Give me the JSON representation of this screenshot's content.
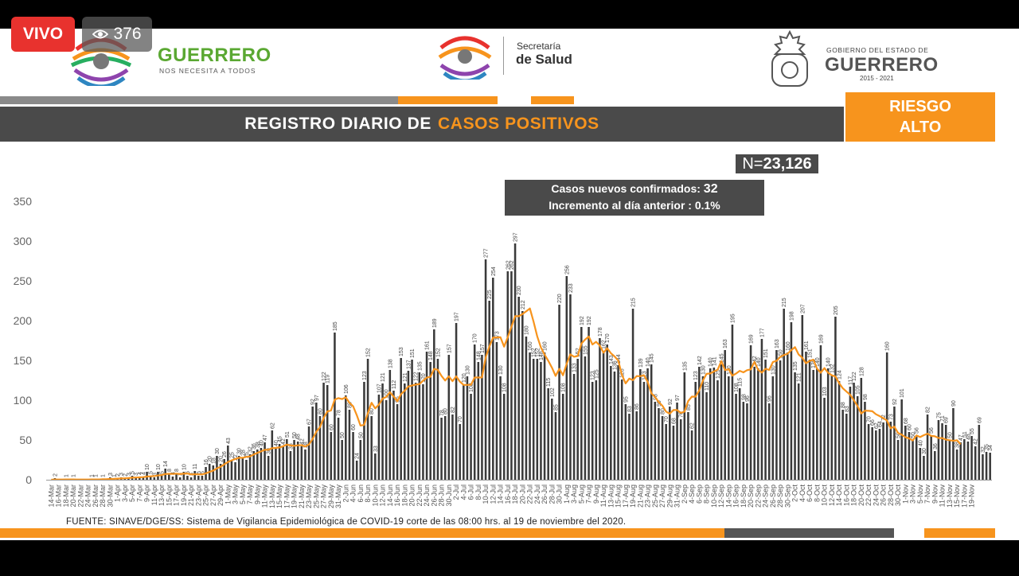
{
  "live": {
    "label": "VIVO",
    "viewers": "376"
  },
  "header": {
    "guerrero": {
      "name": "GUERRERO",
      "tagline": "NOS NECESITA A TODOS"
    },
    "salud": {
      "line1": "Secretaría",
      "line2": "de Salud"
    },
    "gobierno": {
      "line1": "GOBIERNO DEL ESTADO DE",
      "line2": "GUERRERO",
      "years": "2015 - 2021"
    }
  },
  "title": {
    "prefix": "REGISTRO DIARIO DE",
    "highlight": "CASOS POSITIVOS"
  },
  "risk": {
    "line1": "RIESGO",
    "line2": "ALTO"
  },
  "total": {
    "prefix": "N=",
    "value": "23,126"
  },
  "stats": {
    "new_label": "Casos nuevos confirmados:",
    "new_value": "32",
    "inc_label": "Incremento al día anterior :",
    "inc_value": "0.1%"
  },
  "source": "FUENTE: SINAVE/DGE/SS: Sistema de Vigilancia Epidemiológica de COVID-19 corte de las 08:00 hrs. al 19 de noviembre del 2020.",
  "colors": {
    "orange": "#f7941d",
    "dark": "#4a4a4a",
    "bar": "#3a3a3a",
    "red": "#e8322e"
  },
  "chart_data": {
    "type": "bar",
    "ylim": [
      0,
      350
    ],
    "yticks": [
      0,
      50,
      100,
      150,
      200,
      250,
      300,
      350
    ],
    "x_tick_labels": [
      "14-Mar",
      "16-Mar",
      "18-Mar",
      "20-Mar",
      "22-Mar",
      "24-Mar",
      "26-Mar",
      "28-Mar",
      "30-Mar",
      "1-Apr",
      "3-Apr",
      "5-Apr",
      "7-Apr",
      "9-Apr",
      "11-Apr",
      "13-Apr",
      "15-Apr",
      "17-Apr",
      "19-Apr",
      "21-Apr",
      "23-Apr",
      "25-Apr",
      "27-Apr",
      "29-Apr",
      "1-May",
      "3-May",
      "5-May",
      "7-May",
      "9-May",
      "11-May",
      "13-May",
      "15-May",
      "17-May",
      "19-May",
      "21-May",
      "23-May",
      "25-May",
      "27-May",
      "29-May",
      "31-May",
      "2-Jun",
      "4-Jun",
      "6-Jun",
      "8-Jun",
      "10-Jun",
      "12-Jun",
      "14-Jun",
      "16-Jun",
      "18-Jun",
      "20-Jun",
      "22-Jun",
      "24-Jun",
      "26-Jun",
      "28-Jun",
      "30-Jun",
      "2-Jul",
      "4-Jul",
      "6-Jul",
      "8-Jul",
      "10-Jul",
      "12-Jul",
      "14-Jul",
      "16-Jul",
      "18-Jul",
      "20-Jul",
      "22-Jul",
      "24-Jul",
      "26-Jul",
      "28-Jul",
      "30-Jul",
      "1-Aug",
      "3-Aug",
      "5-Aug",
      "7-Aug",
      "9-Aug",
      "11-Aug",
      "13-Aug",
      "15-Aug",
      "17-Aug",
      "19-Aug",
      "21-Aug",
      "23-Aug",
      "25-Aug",
      "27-Aug",
      "29-Aug",
      "31-Aug",
      "2-Sep",
      "4-Sep",
      "6-Sep",
      "8-Sep",
      "10-Sep",
      "12-Sep",
      "14-Sep",
      "16-Sep",
      "18-Sep",
      "20-Sep",
      "22-Sep",
      "24-Sep",
      "26-Sep",
      "28-Sep",
      "30-Sep",
      "2-Oct",
      "4-Oct",
      "6-Oct",
      "8-Oct",
      "10-Oct",
      "12-Oct",
      "14-Oct",
      "16-Oct",
      "18-Oct",
      "20-Oct",
      "22-Oct",
      "24-Oct",
      "26-Oct",
      "28-Oct",
      "30-Oct",
      "1-Nov",
      "3-Nov",
      "5-Nov",
      "7-Nov",
      "9-Nov",
      "11-Nov",
      "13-Nov",
      "15-Nov",
      "17-Nov",
      "19-Nov"
    ],
    "values": [
      0,
      2,
      0,
      0,
      1,
      0,
      1,
      0,
      0,
      0,
      0,
      1,
      1,
      0,
      1,
      0,
      3,
      1,
      2,
      3,
      2,
      3,
      5,
      3,
      4,
      4,
      10,
      5,
      3,
      10,
      5,
      14,
      8,
      4,
      8,
      3,
      10,
      5,
      3,
      11,
      5,
      5,
      16,
      20,
      18,
      30,
      20,
      26,
      43,
      25,
      22,
      30,
      28,
      25,
      32,
      36,
      38,
      40,
      47,
      30,
      62,
      40,
      45,
      42,
      51,
      36,
      50,
      48,
      42,
      38,
      67,
      92,
      97,
      80,
      122,
      119,
      60,
      185,
      78,
      50,
      106,
      88,
      60,
      24,
      50,
      123,
      152,
      80,
      33,
      107,
      121,
      100,
      138,
      112,
      95,
      153,
      121,
      137,
      151,
      122,
      135,
      120,
      161,
      148,
      189,
      152,
      78,
      80,
      157,
      82,
      197,
      70,
      120,
      130,
      108,
      170,
      148,
      157,
      277,
      225,
      254,
      173,
      130,
      108,
      262,
      262,
      297,
      230,
      212,
      180,
      160,
      152,
      152,
      148,
      160,
      115,
      102,
      85,
      220,
      108,
      256,
      233,
      133,
      152,
      192,
      155,
      192,
      123,
      125,
      178,
      162,
      170,
      143,
      136,
      144,
      126,
      95,
      83,
      215,
      86,
      139,
      123,
      140,
      145,
      98,
      90,
      80,
      70,
      92,
      68,
      97,
      76,
      135,
      85,
      62,
      123,
      142,
      130,
      110,
      140,
      141,
      125,
      145,
      163,
      130,
      195,
      108,
      115,
      98,
      96,
      169,
      142,
      140,
      177,
      151,
      96,
      130,
      163,
      150,
      215,
      160,
      198,
      135,
      121,
      207,
      161,
      151,
      138,
      140,
      169,
      103,
      140,
      132,
      205,
      124,
      88,
      83,
      117,
      122,
      105,
      128,
      98,
      70,
      66,
      62,
      64,
      72,
      160,
      73,
      92,
      50,
      101,
      68,
      60,
      50,
      56,
      40,
      30,
      82,
      56,
      36,
      75,
      71,
      69,
      50,
      90,
      38,
      47,
      51,
      48,
      55,
      42,
      69,
      32,
      35,
      34
    ],
    "values_labeled_visible": true,
    "moving_average": [
      0,
      0.3,
      0.3,
      0.3,
      0.4,
      0.4,
      0.4,
      0.3,
      0.3,
      0.3,
      0.3,
      0.4,
      0.4,
      0.4,
      0.6,
      0.6,
      1,
      1.1,
      1.4,
      1.6,
      1.8,
      2.1,
      2.6,
      2.8,
      3,
      3.3,
      4,
      4.3,
      4.6,
      5.4,
      5.9,
      7.2,
      7.5,
      7.3,
      7.7,
      7.1,
      7.6,
      7.8,
      6.7,
      6.9,
      6.8,
      6.7,
      8,
      9.9,
      11.4,
      14.3,
      16.3,
      19.3,
      22.3,
      24.4,
      26.1,
      27.6,
      27.6,
      28.7,
      29.3,
      31.7,
      33.7,
      35.6,
      37.6,
      37.7,
      39.7,
      40,
      40.6,
      42.1,
      44.2,
      43.1,
      42.6,
      43.3,
      43.4,
      41.8,
      44.3,
      51.3,
      60.3,
      66.1,
      77.7,
      85.9,
      87.1,
      100.6,
      102.6,
      101.4,
      103.6,
      96.9,
      92.3,
      81.1,
      68.1,
      68.9,
      83.8,
      96.8,
      89.7,
      94.4,
      102,
      104.1,
      110,
      104.6,
      98.6,
      107.5,
      111.9,
      117.2,
      118.4,
      119.6,
      120.2,
      124.4,
      128.4,
      129.3,
      139.3,
      138.2,
      130.4,
      124.7,
      130,
      123.9,
      130,
      123.3,
      119.2,
      119.2,
      119.4,
      128.5,
      128.5,
      128.6,
      153.8,
      167.3,
      178.6,
      178.9,
      179.1,
      167.3,
      179.1,
      192.1,
      205.7,
      205.5,
      208.3,
      211.6,
      215.3,
      198.8,
      180.3,
      166.4,
      157.2,
      149.5,
      140.9,
      130.5,
      139.4,
      131.3,
      145.7,
      157.6,
      154.6,
      155.4,
      171.1,
      176.1,
      180,
      170,
      173.4,
      168.6,
      159.7,
      165.3,
      159.1,
      155.1,
      149.7,
      132,
      121.1,
      127.1,
      125.2,
      130.3,
      130.2,
      131.3,
      123.1,
      108.7,
      103.9,
      97.7,
      92.9,
      85.6,
      83,
      87.6,
      87.6,
      84,
      85.6,
      98.8,
      104.5,
      104.4,
      112.3,
      124.6,
      133.1,
      133.6,
      136.1,
      138.2,
      149.1,
      137.8,
      138.9,
      130.8,
      133.5,
      136.9,
      135,
      137.7,
      138.7,
      148.1,
      138.1,
      134.7,
      139.4,
      138,
      147.9,
      149.4,
      154.4,
      156.7,
      158.4,
      162.9,
      166.7,
      157.4,
      153.3,
      146.4,
      149.4,
      150.9,
      139.7,
      134.5,
      140.3,
      134.5,
      131.3,
      129.8,
      121.3,
      114.9,
      110.8,
      106.9,
      99.9,
      92.6,
      83.3,
      86.8,
      86.6,
      86.1,
      82.3,
      80,
      77.4,
      74.4,
      64.6,
      66.7,
      58.8,
      56.7,
      53.4,
      51.9,
      49.4,
      55.7,
      53.6,
      56,
      57.9,
      55.1,
      54.6,
      52.5,
      52.4,
      50.4,
      49.7,
      48.9,
      49.6,
      44.6
    ]
  }
}
